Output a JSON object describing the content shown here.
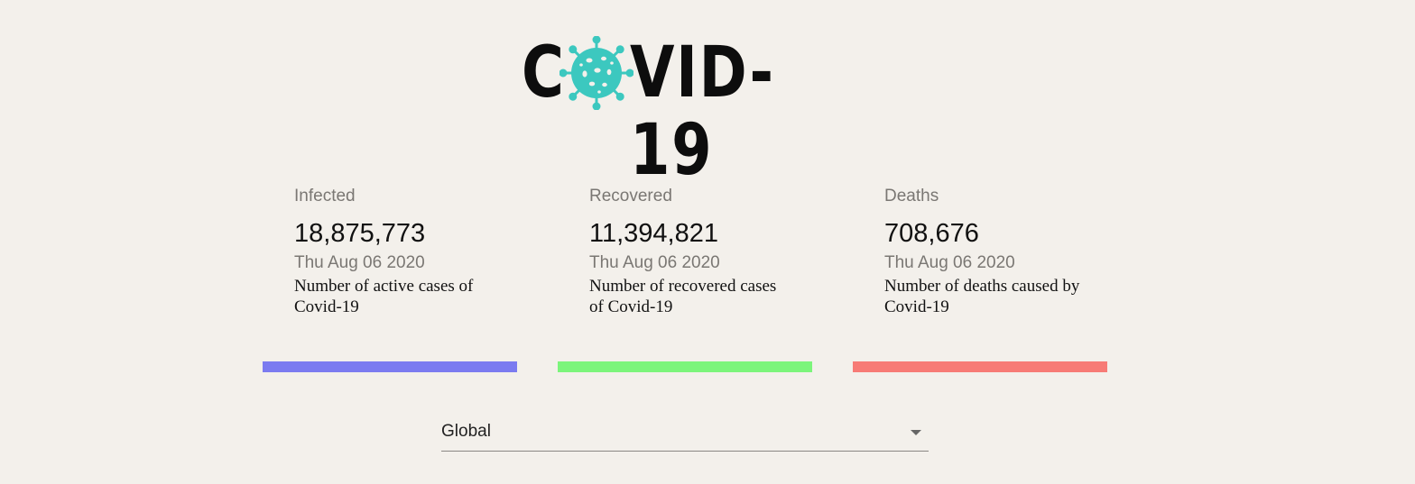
{
  "logo": {
    "letter_c": "C",
    "letters_rest": "VID-19",
    "virus_color": "#3cc8bf",
    "virus_icon": "virus-icon"
  },
  "cards": [
    {
      "title": "Infected",
      "value": "18,875,773",
      "date": "Thu Aug 06 2020",
      "description": "Number of active cases of Covid-19",
      "bar_color": "#7b7bf0"
    },
    {
      "title": "Recovered",
      "value": "11,394,821",
      "date": "Thu Aug 06 2020",
      "description": "Number of recovered cases of Covid-19",
      "bar_color": "#7cf57b"
    },
    {
      "title": "Deaths",
      "value": "708,676",
      "date": "Thu Aug 06 2020",
      "description": "Number of deaths caused by Covid-19",
      "bar_color": "#f77b76"
    }
  ],
  "country_select": {
    "selected": "Global",
    "arrow_icon": "dropdown-arrow-icon"
  }
}
